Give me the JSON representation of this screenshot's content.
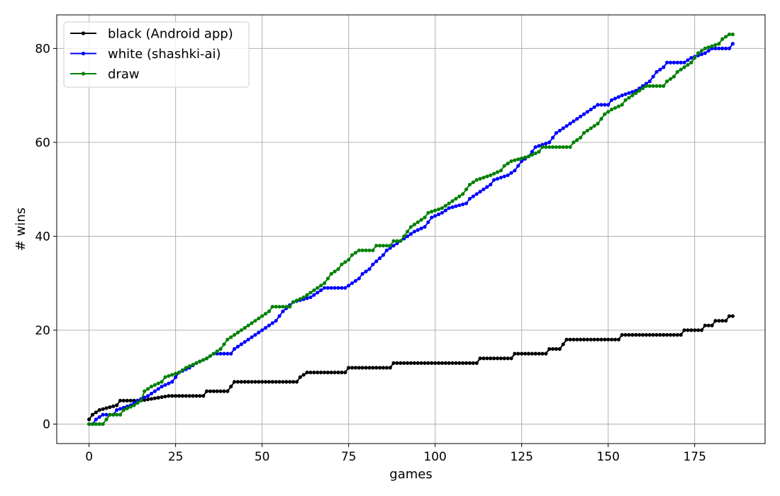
{
  "chart_data": {
    "type": "line",
    "title": "",
    "xlabel": "games",
    "ylabel": "# wins",
    "xlim": [
      -9.35,
      195.35
    ],
    "ylim": [
      -4.15,
      87.15
    ],
    "grid": true,
    "legend_position": "top-left",
    "x_ticks": [
      0,
      25,
      50,
      75,
      100,
      125,
      150,
      175
    ],
    "y_ticks": [
      0,
      20,
      40,
      60,
      80
    ],
    "series": [
      {
        "name": "black (Android app)",
        "color": "#000000",
        "breakpoints": [
          [
            0,
            1
          ],
          [
            1,
            2
          ],
          [
            3,
            3
          ],
          [
            8,
            4
          ],
          [
            9,
            5
          ],
          [
            15,
            5
          ],
          [
            23,
            6
          ],
          [
            33,
            6
          ],
          [
            34,
            7
          ],
          [
            40,
            7
          ],
          [
            41,
            8
          ],
          [
            42,
            9
          ],
          [
            60,
            9
          ],
          [
            61,
            10
          ],
          [
            63,
            11
          ],
          [
            74,
            11
          ],
          [
            75,
            12
          ],
          [
            87,
            12
          ],
          [
            88,
            13
          ],
          [
            112,
            13
          ],
          [
            113,
            14
          ],
          [
            122,
            14
          ],
          [
            123,
            15
          ],
          [
            132,
            15
          ],
          [
            133,
            16
          ],
          [
            136,
            16
          ],
          [
            137,
            17
          ],
          [
            138,
            18
          ],
          [
            153,
            18
          ],
          [
            154,
            19
          ],
          [
            171,
            19
          ],
          [
            172,
            20
          ],
          [
            177,
            20
          ],
          [
            178,
            21
          ],
          [
            180,
            21
          ],
          [
            181,
            22
          ],
          [
            184,
            22
          ],
          [
            185,
            23
          ],
          [
            186,
            23
          ]
        ]
      },
      {
        "name": "white (shashki-ai)",
        "color": "#0000ff",
        "breakpoints": [
          [
            0,
            0
          ],
          [
            1,
            0
          ],
          [
            2,
            1
          ],
          [
            4,
            2
          ],
          [
            7,
            2
          ],
          [
            8,
            3
          ],
          [
            12,
            4
          ],
          [
            14,
            5
          ],
          [
            17,
            6
          ],
          [
            19,
            7
          ],
          [
            21,
            8
          ],
          [
            24,
            9
          ],
          [
            26,
            11
          ],
          [
            29,
            12
          ],
          [
            31,
            13
          ],
          [
            34,
            14
          ],
          [
            36,
            15
          ],
          [
            41,
            15
          ],
          [
            42,
            16
          ],
          [
            44,
            17
          ],
          [
            46,
            18
          ],
          [
            48,
            19
          ],
          [
            50,
            20
          ],
          [
            52,
            21
          ],
          [
            54,
            22
          ],
          [
            56,
            24
          ],
          [
            59,
            26
          ],
          [
            64,
            27
          ],
          [
            66,
            28
          ],
          [
            68,
            29
          ],
          [
            74,
            29
          ],
          [
            76,
            30
          ],
          [
            78,
            31
          ],
          [
            79,
            32
          ],
          [
            81,
            33
          ],
          [
            82,
            34
          ],
          [
            85,
            36
          ],
          [
            86,
            37
          ],
          [
            88,
            38
          ],
          [
            90,
            39
          ],
          [
            92,
            40
          ],
          [
            94,
            41
          ],
          [
            97,
            42
          ],
          [
            99,
            44
          ],
          [
            102,
            45
          ],
          [
            104,
            46
          ],
          [
            109,
            47
          ],
          [
            110,
            48
          ],
          [
            112,
            49
          ],
          [
            114,
            50
          ],
          [
            116,
            51
          ],
          [
            117,
            52
          ],
          [
            121,
            53
          ],
          [
            123,
            54
          ],
          [
            125,
            56
          ],
          [
            127,
            57
          ],
          [
            129,
            59
          ],
          [
            133,
            60
          ],
          [
            135,
            62
          ],
          [
            137,
            63
          ],
          [
            139,
            64
          ],
          [
            141,
            65
          ],
          [
            143,
            66
          ],
          [
            145,
            67
          ],
          [
            147,
            68
          ],
          [
            150,
            68
          ],
          [
            151,
            69
          ],
          [
            154,
            70
          ],
          [
            158,
            71
          ],
          [
            162,
            73
          ],
          [
            164,
            75
          ],
          [
            166,
            76
          ],
          [
            167,
            77
          ],
          [
            172,
            77
          ],
          [
            174,
            78
          ],
          [
            178,
            79
          ],
          [
            180,
            80
          ],
          [
            185,
            80
          ],
          [
            186,
            81
          ]
        ]
      },
      {
        "name": "draw",
        "color": "#008000",
        "breakpoints": [
          [
            0,
            0
          ],
          [
            4,
            0
          ],
          [
            5,
            1
          ],
          [
            6,
            2
          ],
          [
            9,
            2
          ],
          [
            10,
            3
          ],
          [
            13,
            4
          ],
          [
            15,
            5
          ],
          [
            16,
            7
          ],
          [
            18,
            8
          ],
          [
            21,
            9
          ],
          [
            22,
            10
          ],
          [
            26,
            11
          ],
          [
            28,
            12
          ],
          [
            31,
            13
          ],
          [
            34,
            14
          ],
          [
            36,
            15
          ],
          [
            38,
            16
          ],
          [
            39,
            17
          ],
          [
            40,
            18
          ],
          [
            42,
            19
          ],
          [
            44,
            20
          ],
          [
            46,
            21
          ],
          [
            48,
            22
          ],
          [
            50,
            23
          ],
          [
            52,
            24
          ],
          [
            53,
            25
          ],
          [
            58,
            25
          ],
          [
            59,
            26
          ],
          [
            62,
            27
          ],
          [
            64,
            28
          ],
          [
            66,
            29
          ],
          [
            68,
            30
          ],
          [
            70,
            32
          ],
          [
            72,
            33
          ],
          [
            73,
            34
          ],
          [
            75,
            35
          ],
          [
            76,
            36
          ],
          [
            78,
            37
          ],
          [
            82,
            37
          ],
          [
            83,
            38
          ],
          [
            87,
            38
          ],
          [
            88,
            39
          ],
          [
            90,
            39
          ],
          [
            91,
            40
          ],
          [
            93,
            42
          ],
          [
            95,
            43
          ],
          [
            97,
            44
          ],
          [
            98,
            45
          ],
          [
            102,
            46
          ],
          [
            104,
            47
          ],
          [
            106,
            48
          ],
          [
            108,
            49
          ],
          [
            109,
            50
          ],
          [
            110,
            51
          ],
          [
            112,
            52
          ],
          [
            116,
            53
          ],
          [
            119,
            54
          ],
          [
            120,
            55
          ],
          [
            122,
            56
          ],
          [
            127,
            57
          ],
          [
            130,
            58
          ],
          [
            131,
            59
          ],
          [
            139,
            59
          ],
          [
            140,
            60
          ],
          [
            142,
            61
          ],
          [
            143,
            62
          ],
          [
            145,
            63
          ],
          [
            147,
            64
          ],
          [
            148,
            65
          ],
          [
            149,
            66
          ],
          [
            151,
            67
          ],
          [
            154,
            68
          ],
          [
            155,
            69
          ],
          [
            157,
            70
          ],
          [
            159,
            71
          ],
          [
            161,
            72
          ],
          [
            166,
            72
          ],
          [
            167,
            73
          ],
          [
            169,
            74
          ],
          [
            170,
            75
          ],
          [
            172,
            76
          ],
          [
            174,
            77
          ],
          [
            175,
            78
          ],
          [
            176,
            79
          ],
          [
            178,
            80
          ],
          [
            182,
            81
          ],
          [
            183,
            82
          ],
          [
            185,
            83
          ],
          [
            186,
            83
          ]
        ]
      }
    ]
  }
}
